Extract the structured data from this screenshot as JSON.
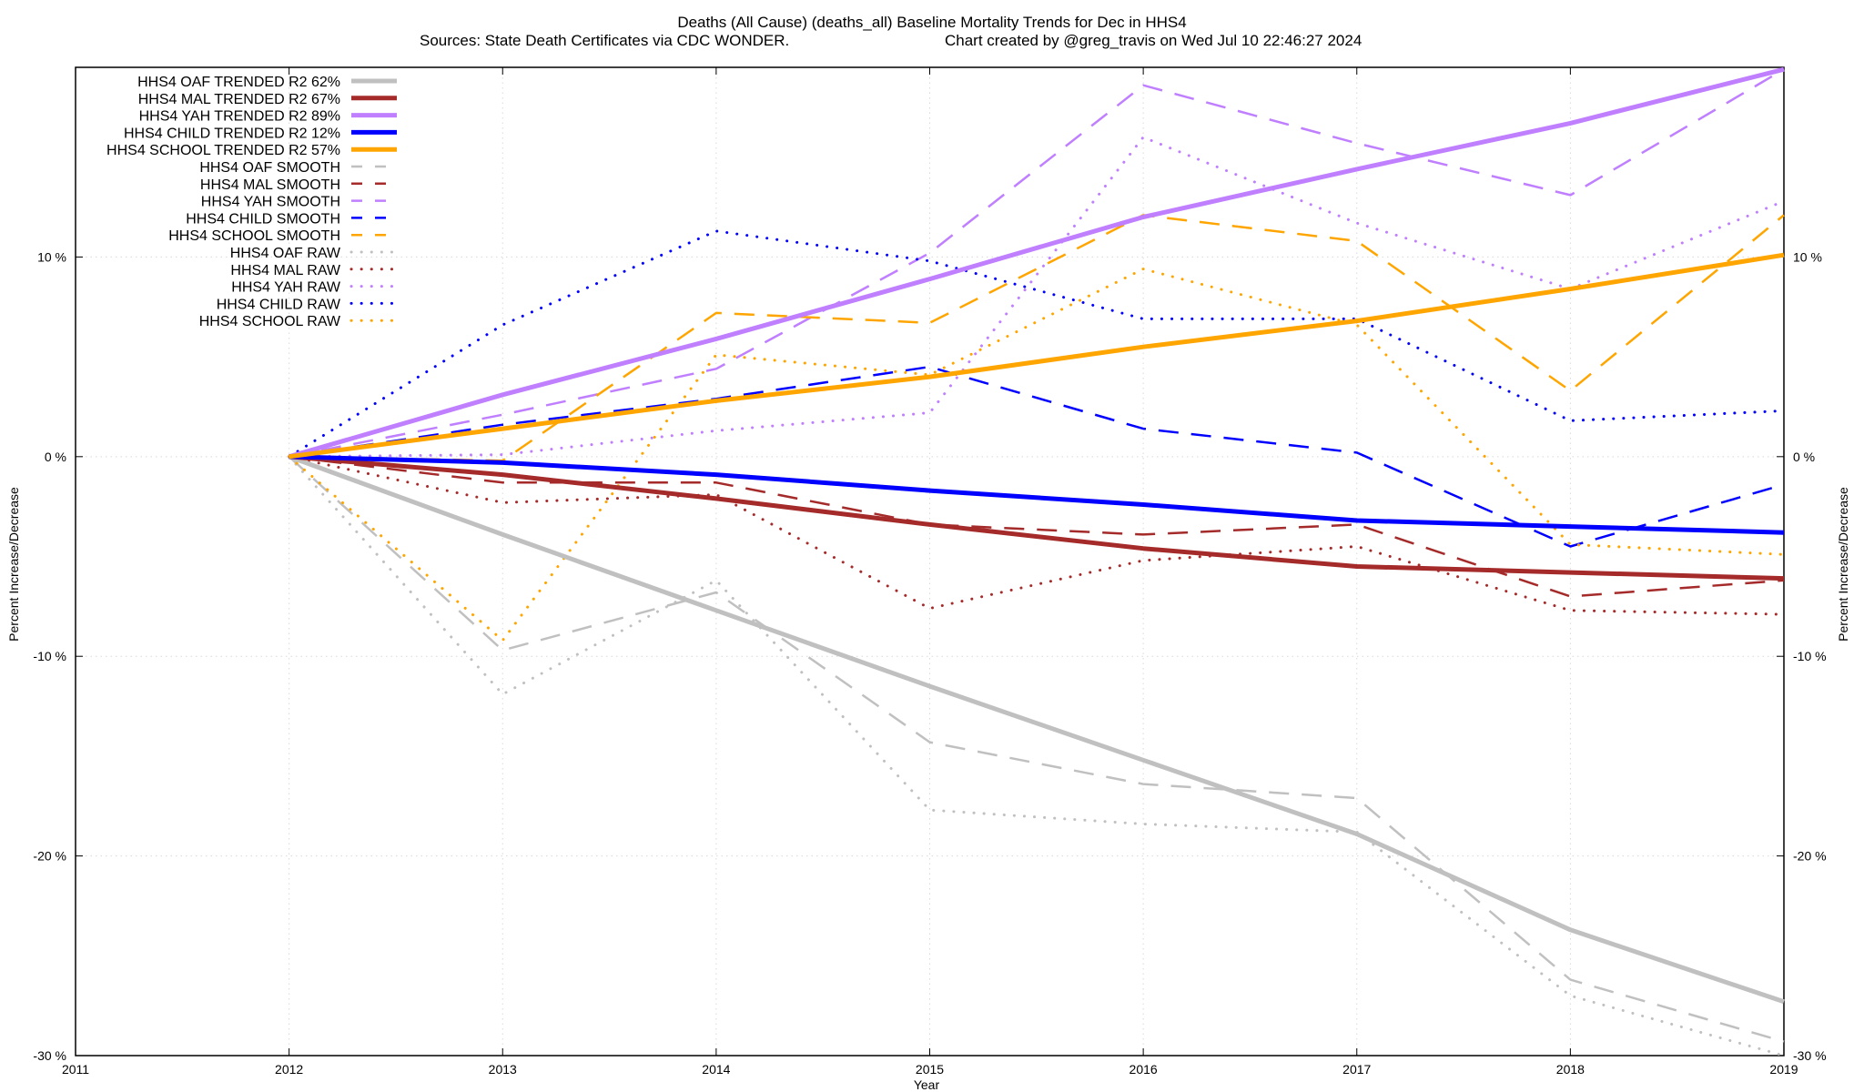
{
  "chart_data": {
    "type": "line",
    "title": "Deaths (All Cause) (deaths_all)  Baseline Mortality Trends for Dec in HHS4",
    "subtitle_left": "Sources: State Death Certificates via CDC WONDER.",
    "subtitle_right": "Chart created by @greg_travis on Wed Jul 10 22:46:27 2024",
    "xlabel": "Year",
    "ylabel": "Percent Increase/Decrease",
    "y2label": "Percent Increase/Decrease",
    "xlim": [
      2011,
      2019
    ],
    "ylim": [
      -30,
      19.5
    ],
    "x_ticks": [
      {
        "value": 2011,
        "label": "2011"
      },
      {
        "value": 2012,
        "label": "2012"
      },
      {
        "value": 2013,
        "label": "2013"
      },
      {
        "value": 2014,
        "label": "2014"
      },
      {
        "value": 2015,
        "label": "2015"
      },
      {
        "value": 2016,
        "label": "2016"
      },
      {
        "value": 2017,
        "label": "2017"
      },
      {
        "value": 2018,
        "label": "2018"
      },
      {
        "value": 2019,
        "label": "2019"
      }
    ],
    "y_ticks": [
      {
        "value": 10,
        "label": "10 %"
      },
      {
        "value": 0,
        "label": "0 %"
      },
      {
        "value": -10,
        "label": "-10 %"
      },
      {
        "value": -20,
        "label": "-20 %"
      },
      {
        "value": -30,
        "label": "-30 %"
      }
    ],
    "grid": true,
    "legend_position": "top-left",
    "series": [
      {
        "name": "HHS4 OAF TRENDED R2  62%",
        "style": "solid",
        "color": "#c0c0c0",
        "x": [
          2012,
          2013,
          2014,
          2015,
          2016,
          2017,
          2018,
          2019
        ],
        "y": [
          0,
          -3.9,
          -7.7,
          -11.5,
          -15.2,
          -18.9,
          -23.7,
          -27.3
        ]
      },
      {
        "name": "HHS4 MAL TRENDED R2  67%",
        "style": "solid",
        "color": "#a52a2a",
        "x": [
          2012,
          2013,
          2014,
          2015,
          2016,
          2017,
          2018,
          2019
        ],
        "y": [
          0,
          -0.9,
          -2.1,
          -3.4,
          -4.6,
          -5.5,
          -5.8,
          -6.1
        ]
      },
      {
        "name": "HHS4 YAH TRENDED R2  89%",
        "style": "solid",
        "color": "#bf7fff",
        "x": [
          2012,
          2013,
          2014,
          2015,
          2016,
          2017,
          2018,
          2019
        ],
        "y": [
          0,
          3.1,
          5.9,
          8.9,
          12.0,
          14.4,
          16.7,
          19.4
        ]
      },
      {
        "name": "HHS4 CHILD TRENDED R2  12%",
        "style": "solid",
        "color": "#0000ff",
        "x": [
          2012,
          2013,
          2014,
          2015,
          2016,
          2017,
          2018,
          2019
        ],
        "y": [
          0,
          -0.3,
          -0.9,
          -1.7,
          -2.4,
          -3.2,
          -3.5,
          -3.8
        ]
      },
      {
        "name": "HHS4 SCHOOL TRENDED R2  57%",
        "style": "solid",
        "color": "#ffa500",
        "x": [
          2012,
          2013,
          2014,
          2015,
          2016,
          2017,
          2018,
          2019
        ],
        "y": [
          0,
          1.4,
          2.8,
          4.0,
          5.5,
          6.8,
          8.4,
          10.1
        ]
      },
      {
        "name": "HHS4 OAF SMOOTH",
        "style": "dashed",
        "color": "#c0c0c0",
        "x": [
          2012,
          2013,
          2014,
          2015,
          2016,
          2017,
          2018,
          2019
        ],
        "y": [
          0,
          -9.7,
          -6.8,
          -14.3,
          -16.4,
          -17.1,
          -26.2,
          -29.3
        ]
      },
      {
        "name": "HHS4 MAL SMOOTH",
        "style": "dashed",
        "color": "#a52a2a",
        "x": [
          2012,
          2013,
          2014,
          2015,
          2016,
          2017,
          2018,
          2019
        ],
        "y": [
          0,
          -1.3,
          -1.3,
          -3.4,
          -3.9,
          -3.4,
          -7.0,
          -6.2
        ]
      },
      {
        "name": "HHS4 YAH SMOOTH",
        "style": "dashed",
        "color": "#bf7fff",
        "x": [
          2012,
          2013,
          2014,
          2015,
          2016,
          2017,
          2018,
          2019
        ],
        "y": [
          0,
          2.1,
          4.4,
          10.2,
          18.6,
          15.7,
          13.1,
          19.4
        ]
      },
      {
        "name": "HHS4 CHILD SMOOTH",
        "style": "dashed",
        "color": "#0000ff",
        "x": [
          2012,
          2013,
          2014,
          2015,
          2016,
          2017,
          2018,
          2019
        ],
        "y": [
          0,
          1.6,
          2.9,
          4.5,
          1.4,
          0.2,
          -4.5,
          -1.4
        ]
      },
      {
        "name": "HHS4 SCHOOL SMOOTH",
        "style": "dashed",
        "color": "#ffa500",
        "x": [
          2012,
          2013,
          2014,
          2015,
          2016,
          2017,
          2018,
          2019
        ],
        "y": [
          0,
          -0.2,
          7.2,
          6.7,
          12.1,
          10.8,
          3.3,
          12.1
        ]
      },
      {
        "name": "HHS4 OAF RAW",
        "style": "dotted",
        "color": "#c0c0c0",
        "x": [
          2012,
          2013,
          2014,
          2015,
          2016,
          2017,
          2018,
          2019
        ],
        "y": [
          0,
          -11.9,
          -6.2,
          -17.7,
          -18.4,
          -18.8,
          -27.0,
          -30.0
        ]
      },
      {
        "name": "HHS4 MAL RAW",
        "style": "dotted",
        "color": "#a52a2a",
        "x": [
          2012,
          2013,
          2014,
          2015,
          2016,
          2017,
          2018,
          2019
        ],
        "y": [
          0,
          -2.3,
          -1.9,
          -7.6,
          -5.2,
          -4.5,
          -7.7,
          -7.9
        ]
      },
      {
        "name": "HHS4 YAH RAW",
        "style": "dotted",
        "color": "#bf7fff",
        "x": [
          2012,
          2013,
          2014,
          2015,
          2016,
          2017,
          2018,
          2019
        ],
        "y": [
          0,
          0.1,
          1.3,
          2.2,
          16.0,
          11.7,
          8.4,
          12.8
        ]
      },
      {
        "name": "HHS4 CHILD RAW",
        "style": "dotted",
        "color": "#0000ff",
        "x": [
          2012,
          2013,
          2014,
          2015,
          2016,
          2017,
          2018,
          2019
        ],
        "y": [
          0,
          6.6,
          11.3,
          9.8,
          6.9,
          6.9,
          1.8,
          2.3
        ]
      },
      {
        "name": "HHS4 SCHOOL RAW",
        "style": "dotted",
        "color": "#ffa500",
        "x": [
          2012,
          2013,
          2014,
          2015,
          2016,
          2017,
          2018,
          2019
        ],
        "y": [
          0,
          -9.2,
          5.1,
          4.1,
          9.4,
          6.6,
          -4.4,
          -4.9
        ]
      }
    ]
  }
}
